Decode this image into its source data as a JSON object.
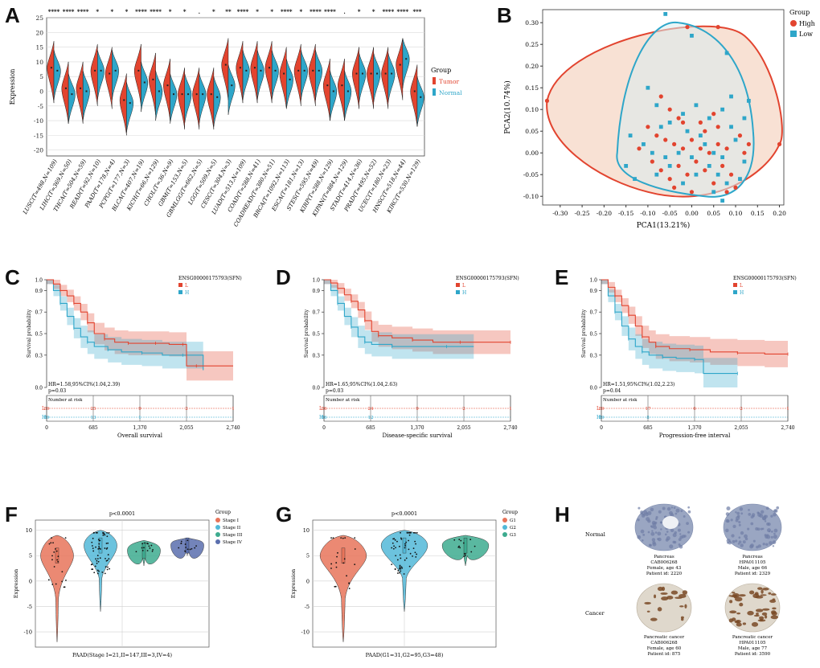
{
  "panel_letters": [
    "A",
    "B",
    "C",
    "D",
    "E",
    "F",
    "G",
    "H"
  ],
  "chart_data": [
    {
      "id": "A",
      "type": "violin",
      "ylabel": "Expression",
      "ylim": [
        -22,
        25
      ],
      "yticks": [
        25,
        20,
        15,
        10,
        5,
        0,
        -5,
        -10,
        -15,
        -20
      ],
      "legend": {
        "title": "Group",
        "entries": [
          "Tumor",
          "Normal"
        ],
        "placement": "right"
      },
      "colors": {
        "Tumor": "#e2442f",
        "Normal": "#2ea6c9"
      },
      "categories": [
        "LUSC(T=498,N=109)",
        "LIHC(T=369,N=50)",
        "THCA(T=504,N=59)",
        "READ(T=92,N=10)",
        "PAAD(T=178,N=4)",
        "PCPG(T=177,N=3)",
        "BLCA(T=407,N=19)",
        "KICH(T=66,N=129)",
        "CHOL(T=36,N=9)",
        "GBM(T=153,N=5)",
        "GBMLGG(T=662,N=5)",
        "LGG(T=509,N=5)",
        "CESC(T=304,N=3)",
        "LUAD(T=513,N=109)",
        "COAD(T=288,N=41)",
        "COADREAD(T=380,N=51)",
        "BRCA(T=1092,N=113)",
        "ESCA(T=181,N=13)",
        "STES(T=595,N=49)",
        "KIRP(T=288,N=129)",
        "KIPAN(T=884,N=129)",
        "STAD(T=414,N=36)",
        "PRAD(T=495,N=52)",
        "UCEC(T=180,N=23)",
        "HNSC(T=518,N=44)",
        "KIRC(T=530,N=129)"
      ],
      "significance": [
        "****",
        "****",
        "****",
        "*",
        "*",
        "*",
        "****",
        "****",
        "*",
        "*",
        ".",
        "*",
        "**",
        "****",
        "*",
        "*",
        "****",
        "*",
        "****",
        "****",
        ".",
        "*",
        "*",
        "****",
        "****",
        "***"
      ],
      "tumor_median": [
        8,
        1,
        1,
        7,
        6,
        -3,
        7,
        4,
        2,
        -1,
        -1,
        -1,
        9,
        8,
        8,
        8,
        6,
        7,
        7,
        2,
        2,
        6,
        6,
        6,
        9,
        0
      ],
      "normal_median": [
        7,
        -1,
        0,
        7,
        7,
        -4,
        3,
        0,
        -1,
        -1,
        -1,
        -2,
        2,
        7,
        7,
        7,
        4,
        7,
        7,
        0,
        0,
        6,
        6,
        6,
        11,
        -2
      ]
    },
    {
      "id": "B",
      "type": "scatter",
      "xlabel": "PCA1(13.21%)",
      "ylabel": "PCA2(10.74%)",
      "xlim": [
        -0.34,
        0.21
      ],
      "ylim": [
        -0.12,
        0.33
      ],
      "xticks": [
        "-0.30",
        "-0.25",
        "-0.20",
        "-0.15",
        "-0.10",
        "-0.05",
        "0.00",
        "0.05",
        "0.10",
        "0.15",
        "0.20"
      ],
      "yticks": [
        "0.30",
        "0.25",
        "0.20",
        "0.15",
        "0.10",
        "0.05",
        "0.00",
        "-0.05",
        "-0.10"
      ],
      "legend": {
        "title": "Group",
        "entries": [
          "High",
          "Low"
        ],
        "placement": "right"
      },
      "colors": {
        "High": "#e2442f",
        "Low": "#2ea6c9"
      },
      "series": [
        {
          "name": "High",
          "points": [
            [
              -0.33,
              0.12
            ],
            [
              -0.01,
              0.29
            ],
            [
              0.06,
              0.29
            ],
            [
              0.2,
              0.02
            ],
            [
              0.12,
              0.0
            ],
            [
              -0.07,
              0.13
            ],
            [
              -0.05,
              0.1
            ],
            [
              -0.03,
              0.08
            ],
            [
              0.02,
              0.07
            ],
            [
              0.05,
              0.09
            ],
            [
              -0.08,
              0.04
            ],
            [
              -0.06,
              0.03
            ],
            [
              -0.04,
              0.02
            ],
            [
              -0.02,
              0.01
            ],
            [
              0.0,
              0.03
            ],
            [
              0.02,
              0.01
            ],
            [
              0.04,
              0.0
            ],
            [
              0.06,
              0.02
            ],
            [
              0.08,
              0.01
            ],
            [
              -0.09,
              -0.02
            ],
            [
              -0.07,
              -0.04
            ],
            [
              -0.05,
              -0.06
            ],
            [
              -0.03,
              -0.03
            ],
            [
              -0.01,
              -0.05
            ],
            [
              0.01,
              -0.02
            ],
            [
              0.03,
              -0.04
            ],
            [
              0.05,
              -0.07
            ],
            [
              0.07,
              -0.03
            ],
            [
              0.09,
              -0.05
            ],
            [
              0.1,
              -0.08
            ],
            [
              -0.1,
              0.06
            ],
            [
              0.11,
              0.04
            ],
            [
              -0.04,
              -0.08
            ],
            [
              0.0,
              -0.09
            ],
            [
              0.03,
              0.05
            ],
            [
              -0.12,
              0.01
            ],
            [
              0.13,
              0.02
            ],
            [
              0.06,
              0.06
            ],
            [
              -0.02,
              0.07
            ],
            [
              0.08,
              -0.09
            ]
          ]
        },
        {
          "name": "Low",
          "points": [
            [
              -0.06,
              0.32
            ],
            [
              0.0,
              0.27
            ],
            [
              0.08,
              0.23
            ],
            [
              0.13,
              0.12
            ],
            [
              -0.14,
              0.04
            ],
            [
              -0.1,
              0.15
            ],
            [
              -0.08,
              0.11
            ],
            [
              -0.05,
              0.07
            ],
            [
              -0.02,
              0.09
            ],
            [
              0.01,
              0.11
            ],
            [
              0.04,
              0.08
            ],
            [
              0.07,
              0.1
            ],
            [
              0.09,
              0.06
            ],
            [
              -0.11,
              0.02
            ],
            [
              -0.09,
              0.0
            ],
            [
              -0.06,
              -0.01
            ],
            [
              -0.03,
              0.0
            ],
            [
              0.0,
              -0.01
            ],
            [
              0.03,
              0.02
            ],
            [
              0.05,
              0.0
            ],
            [
              0.07,
              -0.01
            ],
            [
              0.1,
              0.03
            ],
            [
              0.12,
              -0.02
            ],
            [
              -0.08,
              -0.05
            ],
            [
              -0.05,
              -0.03
            ],
            [
              -0.02,
              -0.07
            ],
            [
              0.01,
              -0.05
            ],
            [
              0.04,
              -0.03
            ],
            [
              0.06,
              -0.05
            ],
            [
              0.08,
              -0.07
            ],
            [
              0.11,
              -0.06
            ],
            [
              0.07,
              -0.11
            ],
            [
              -0.15,
              -0.03
            ],
            [
              -0.13,
              -0.06
            ],
            [
              0.02,
              0.04
            ],
            [
              -0.07,
              0.06
            ],
            [
              0.09,
              0.13
            ],
            [
              0.12,
              0.08
            ],
            [
              -0.01,
              0.05
            ],
            [
              0.05,
              -0.09
            ]
          ]
        }
      ]
    },
    {
      "id": "C",
      "type": "line",
      "title": "ENSG00000175793(SFN)",
      "xlabel": "Overall survival",
      "ylabel": "Survival probability",
      "xticks": [
        "0",
        "685",
        "1,370",
        "2,055",
        "2,740"
      ],
      "yticks": [
        "1.0",
        "0.9",
        "0.7",
        "0.5",
        "0.3",
        "0.0"
      ],
      "legend": {
        "entries": [
          "L",
          "H"
        ],
        "placement": "top-right"
      },
      "colors": {
        "L": "#e2442f",
        "H": "#2ea6c9"
      },
      "annotation": "HR=1.58,95%CI%(1.04,2.39)",
      "pvalue": "p=0.03",
      "risk_title": "Number at risk",
      "risk_numbers": {
        "L": [
          "89",
          "25",
          "9",
          "2",
          "1"
        ],
        "H": [
          "89",
          "13",
          "1",
          "",
          ""
        ]
      },
      "series": [
        {
          "name": "L",
          "x": [
            0,
            100,
            200,
            300,
            400,
            500,
            600,
            700,
            850,
            1000,
            1200,
            1400,
            1600,
            1800,
            2000,
            2055,
            2200,
            2740
          ],
          "y": [
            1.0,
            0.96,
            0.9,
            0.85,
            0.78,
            0.7,
            0.6,
            0.5,
            0.45,
            0.42,
            0.41,
            0.41,
            0.41,
            0.4,
            0.4,
            0.2,
            0.2,
            0.2
          ]
        },
        {
          "name": "H",
          "x": [
            0,
            100,
            200,
            300,
            400,
            500,
            600,
            700,
            900,
            1100,
            1400,
            1700,
            2000,
            2300
          ],
          "y": [
            1.0,
            0.9,
            0.78,
            0.66,
            0.55,
            0.47,
            0.42,
            0.38,
            0.35,
            0.33,
            0.32,
            0.3,
            0.3,
            0.16
          ]
        }
      ]
    },
    {
      "id": "D",
      "type": "line",
      "title": "ENSG00000175793(SFN)",
      "xlabel": "Disease-specific survival",
      "ylabel": "Survival probability",
      "xticks": [
        "0",
        "685",
        "1,370",
        "2,055",
        "2,740"
      ],
      "yticks": [
        "1.0",
        "0.9",
        "0.7",
        "0.5",
        "0.3",
        "0.0"
      ],
      "legend": {
        "entries": [
          "L",
          "H"
        ],
        "placement": "top-right"
      },
      "colors": {
        "L": "#e2442f",
        "H": "#2ea6c9"
      },
      "annotation": "HR=1.65,95%CI%(1.04,2.63)",
      "pvalue": "p=0.03",
      "risk_title": "Number at risk",
      "risk_numbers": {
        "L": [
          "86",
          "24",
          "9",
          "2",
          "1"
        ],
        "H": [
          "86",
          "12",
          "",
          "",
          ""
        ]
      },
      "series": [
        {
          "name": "L",
          "x": [
            0,
            100,
            200,
            300,
            400,
            500,
            600,
            700,
            800,
            1000,
            1300,
            1600,
            2000,
            2400,
            2740
          ],
          "y": [
            1.0,
            0.97,
            0.92,
            0.86,
            0.8,
            0.72,
            0.62,
            0.52,
            0.48,
            0.46,
            0.44,
            0.42,
            0.42,
            0.42,
            0.42
          ]
        },
        {
          "name": "H",
          "x": [
            0,
            100,
            200,
            300,
            400,
            500,
            600,
            700,
            1000,
            1400,
            1800,
            2200
          ],
          "y": [
            1.0,
            0.9,
            0.78,
            0.66,
            0.56,
            0.47,
            0.42,
            0.4,
            0.38,
            0.38,
            0.38,
            0.38
          ]
        }
      ]
    },
    {
      "id": "E",
      "type": "line",
      "title": "ENSG00000175793(SFN)",
      "xlabel": "Progression-free interval",
      "ylabel": "Survival probability",
      "xticks": [
        "0",
        "685",
        "1,370",
        "2,055",
        "2,740"
      ],
      "yticks": [
        "1.0",
        "0.9",
        "0.7",
        "0.5",
        "0.3",
        "0.0"
      ],
      "legend": {
        "entries": [
          "L",
          "H"
        ],
        "placement": "top-right"
      },
      "colors": {
        "L": "#e2442f",
        "H": "#2ea6c9"
      },
      "annotation": "HR=1.51,95%CI%(1.02,2.23)",
      "pvalue": "p=0.04",
      "risk_title": "Number at risk",
      "risk_numbers": {
        "L": [
          "89",
          "17",
          "6",
          "2",
          "1"
        ],
        "H": [
          "89",
          "8",
          "",
          "",
          ""
        ]
      },
      "series": [
        {
          "name": "L",
          "x": [
            0,
            100,
            200,
            300,
            400,
            500,
            600,
            700,
            800,
            1000,
            1300,
            1600,
            2000,
            2400,
            2740
          ],
          "y": [
            1.0,
            0.93,
            0.85,
            0.76,
            0.67,
            0.57,
            0.47,
            0.42,
            0.38,
            0.36,
            0.35,
            0.33,
            0.32,
            0.31,
            0.31
          ]
        },
        {
          "name": "H",
          "x": [
            0,
            100,
            200,
            300,
            400,
            500,
            600,
            700,
            900,
            1100,
            1370,
            1500,
            2000
          ],
          "y": [
            1.0,
            0.85,
            0.7,
            0.57,
            0.45,
            0.38,
            0.33,
            0.3,
            0.28,
            0.27,
            0.26,
            0.13,
            0.13
          ]
        }
      ]
    },
    {
      "id": "F",
      "type": "violin",
      "title": "p<0.0001",
      "xlabel": "PAAD(Stage I=21,II=147,III=3,IV=4)",
      "ylabel": "Expression",
      "ylim": [
        -13,
        12
      ],
      "yticks": [
        "10",
        "5",
        "0",
        "-5",
        "-10"
      ],
      "legend": {
        "title": "Group",
        "entries": [
          "Stage I",
          "Stage II",
          "Stage III",
          "Stage IV"
        ],
        "placement": "right"
      },
      "colors": {
        "Stage I": "#e8745a",
        "Stage II": "#52b9d8",
        "Stage III": "#3dab8f",
        "Stage IV": "#5a6fae"
      },
      "groups": [
        {
          "name": "Stage I",
          "min": -12,
          "max": 9,
          "median": 5
        },
        {
          "name": "Stage II",
          "min": -6,
          "max": 10,
          "median": 7
        },
        {
          "name": "Stage III",
          "min": 3,
          "max": 8,
          "median": 6
        },
        {
          "name": "Stage IV",
          "min": 5,
          "max": 8.5,
          "median": 7
        }
      ]
    },
    {
      "id": "G",
      "type": "violin",
      "title": "p<0.0001",
      "xlabel": "PAAD(G1=31,G2=95,G3=48)",
      "ylabel": "Expression",
      "ylim": [
        -13,
        12
      ],
      "yticks": [
        "10",
        "5",
        "0",
        "-5",
        "-10"
      ],
      "legend": {
        "title": "Group",
        "entries": [
          "G1",
          "G2",
          "G3"
        ],
        "placement": "right"
      },
      "colors": {
        "G1": "#e8745a",
        "G2": "#52b9d8",
        "G3": "#3dab8f"
      },
      "groups": [
        {
          "name": "G1",
          "min": -12,
          "max": 9,
          "median": 5
        },
        {
          "name": "G2",
          "min": -6,
          "max": 10,
          "median": 7
        },
        {
          "name": "G3",
          "min": 3,
          "max": 9,
          "median": 7
        }
      ]
    }
  ],
  "panel_h": {
    "row_labels": [
      "Normal",
      "Cancer"
    ],
    "cards": [
      {
        "row": "Normal",
        "lines": [
          "Pancreas",
          "CAB006268",
          "Female, age 43",
          "Patient id: 2220"
        ],
        "stain": "normal"
      },
      {
        "row": "Normal",
        "lines": [
          "Pancreas",
          "HPA011105",
          "Male, age 66",
          "Patient id: 2329"
        ],
        "stain": "normal"
      },
      {
        "row": "Cancer",
        "lines": [
          "Pancreatic cancer",
          "CAB006268",
          "Female, age 60",
          "Patient id: 875"
        ],
        "stain": "cancer"
      },
      {
        "row": "Cancer",
        "lines": [
          "Pancreatic cancer",
          "HPA011105",
          "Male, age 77",
          "Patient id: 3590"
        ],
        "stain": "cancer"
      }
    ]
  }
}
